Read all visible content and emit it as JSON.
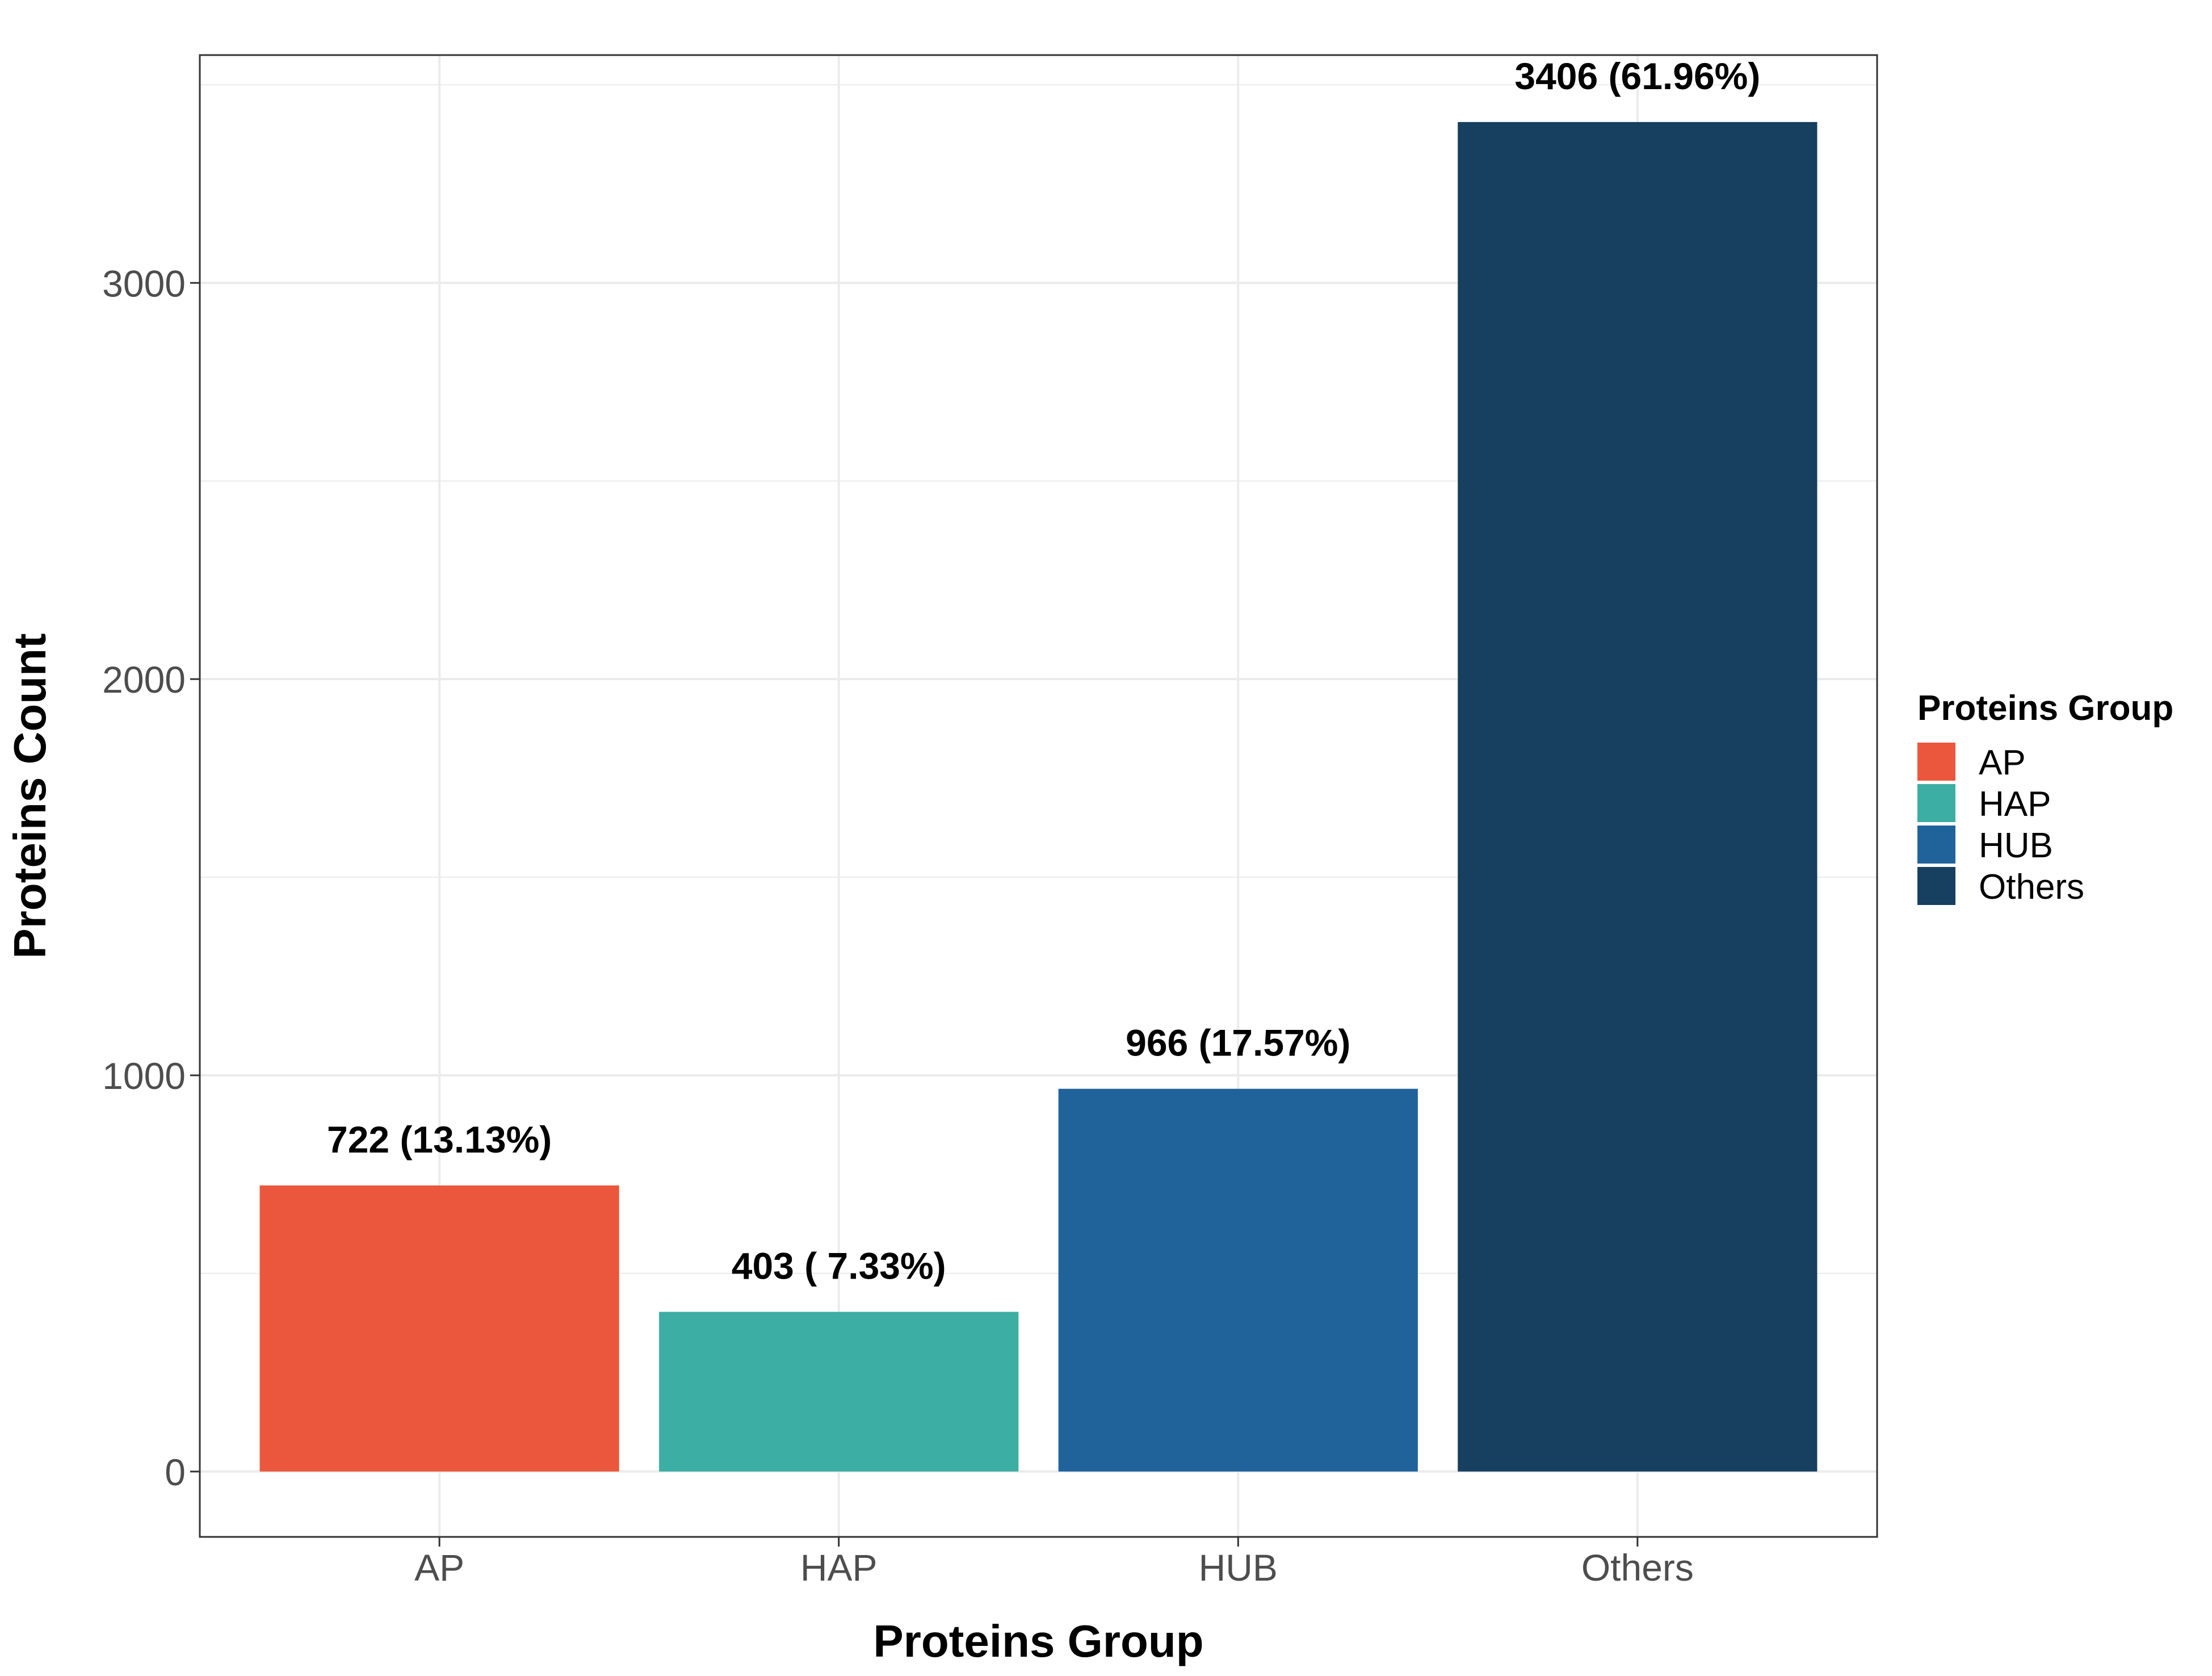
{
  "chart_data": {
    "type": "bar",
    "categories": [
      "AP",
      "HAP",
      "HUB",
      "Others"
    ],
    "values": [
      722,
      403,
      966,
      3406
    ],
    "data_labels": [
      "722 (13.13%)",
      "403 ( 7.33%)",
      "966 (17.57%)",
      "3406 (61.96%)"
    ],
    "colors": [
      "#eb573c",
      "#3caea3",
      "#20639b",
      "#173f5f"
    ],
    "title": "",
    "xlabel": "Proteins Group",
    "ylabel": "Proteins Count",
    "ylim": [
      -165,
      3575
    ],
    "yticks": [
      0,
      1000,
      2000,
      3000
    ],
    "ytick_labels": [
      "0",
      "1000",
      "2000",
      "3000"
    ],
    "grid": true,
    "legend": {
      "title": "Proteins Group",
      "position": "right",
      "items": [
        "AP",
        "HAP",
        "HUB",
        "Others"
      ]
    }
  }
}
